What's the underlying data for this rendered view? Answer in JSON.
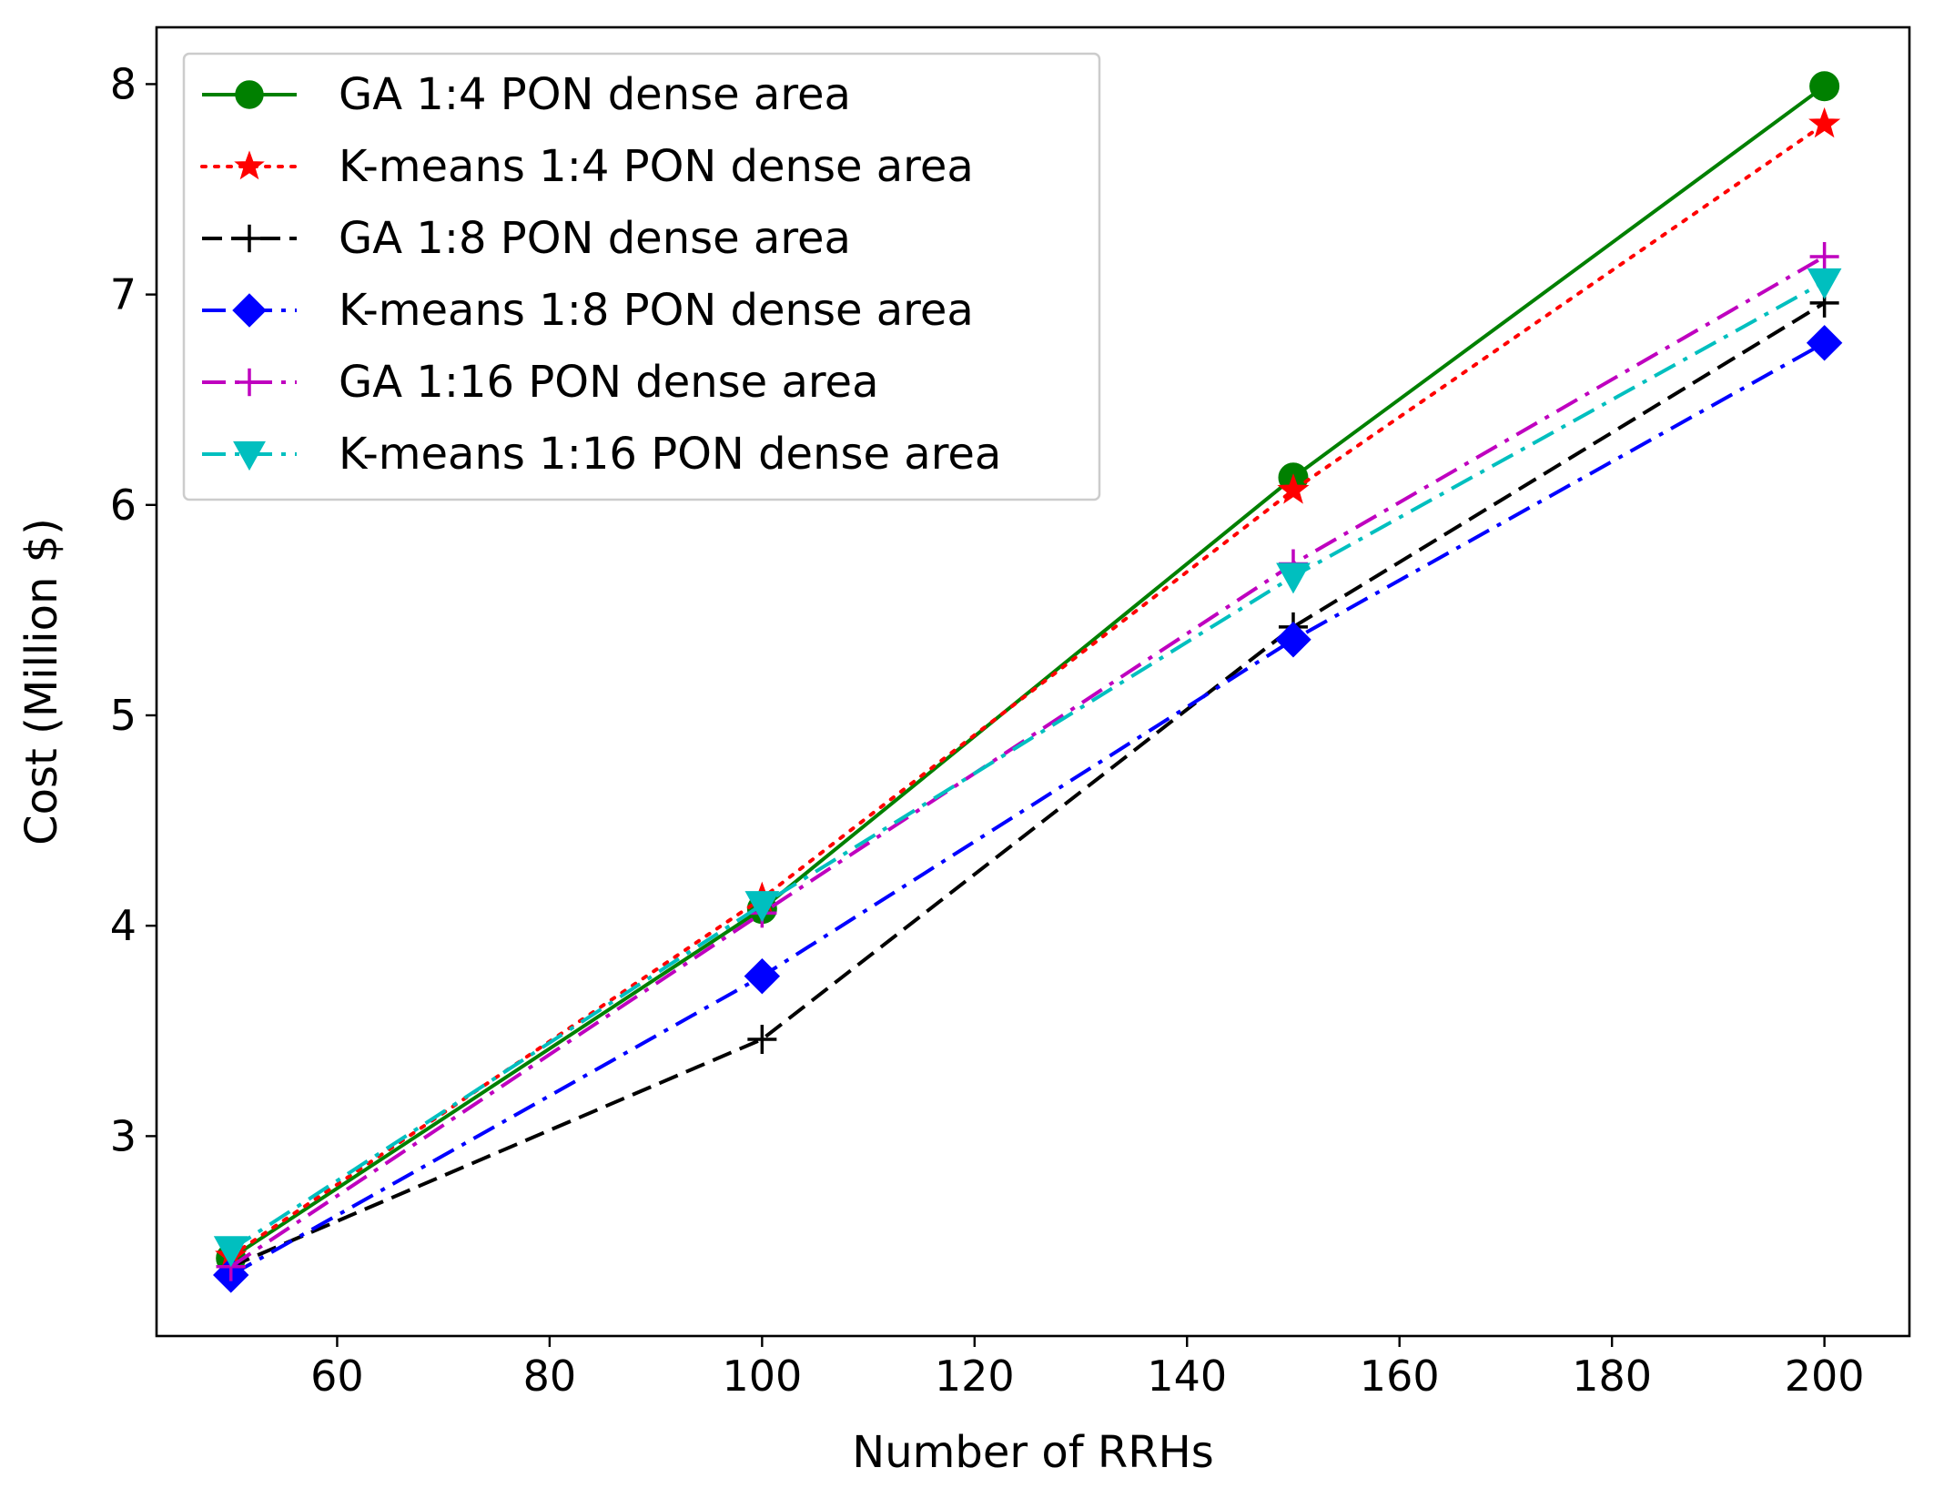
{
  "chart_data": {
    "type": "line",
    "title": "",
    "xlabel": "Number of RRHs",
    "ylabel": "Cost (Million $)",
    "xlim": [
      43,
      208
    ],
    "ylim": [
      2.05,
      8.27
    ],
    "xticks": [
      60,
      80,
      100,
      120,
      140,
      160,
      180,
      200
    ],
    "yticks": [
      3,
      4,
      5,
      6,
      7,
      8
    ],
    "grid": false,
    "legend_position": "upper-left",
    "x": [
      50,
      100,
      150,
      200
    ],
    "series": [
      {
        "name": "GA 1:4 PON dense area",
        "values": [
          2.42,
          4.08,
          6.13,
          7.99
        ],
        "color": "#008000",
        "line_style": "solid",
        "marker": "circle"
      },
      {
        "name": "K-means 1:4 PON dense area",
        "values": [
          2.43,
          4.13,
          6.07,
          7.81
        ],
        "color": "#ff0000",
        "line_style": "dotted",
        "marker": "star"
      },
      {
        "name": "GA 1:8 PON dense area",
        "values": [
          2.38,
          3.46,
          5.42,
          6.96
        ],
        "color": "#000000",
        "line_style": "dashed",
        "marker": "plus"
      },
      {
        "name": "K-means 1:8 PON dense area",
        "values": [
          2.34,
          3.76,
          5.36,
          6.77
        ],
        "color": "#0000ff",
        "line_style": "dashdot",
        "marker": "diamond"
      },
      {
        "name": "GA 1:16 PON dense area",
        "values": [
          2.38,
          4.06,
          5.72,
          7.18
        ],
        "color": "#bf00bf",
        "line_style": "dashdot",
        "marker": "plus"
      },
      {
        "name": "K-means 1:16 PON dense area",
        "values": [
          2.46,
          4.1,
          5.66,
          7.06
        ],
        "color": "#00bfbf",
        "line_style": "dashdot",
        "marker": "triangle-down"
      }
    ]
  }
}
